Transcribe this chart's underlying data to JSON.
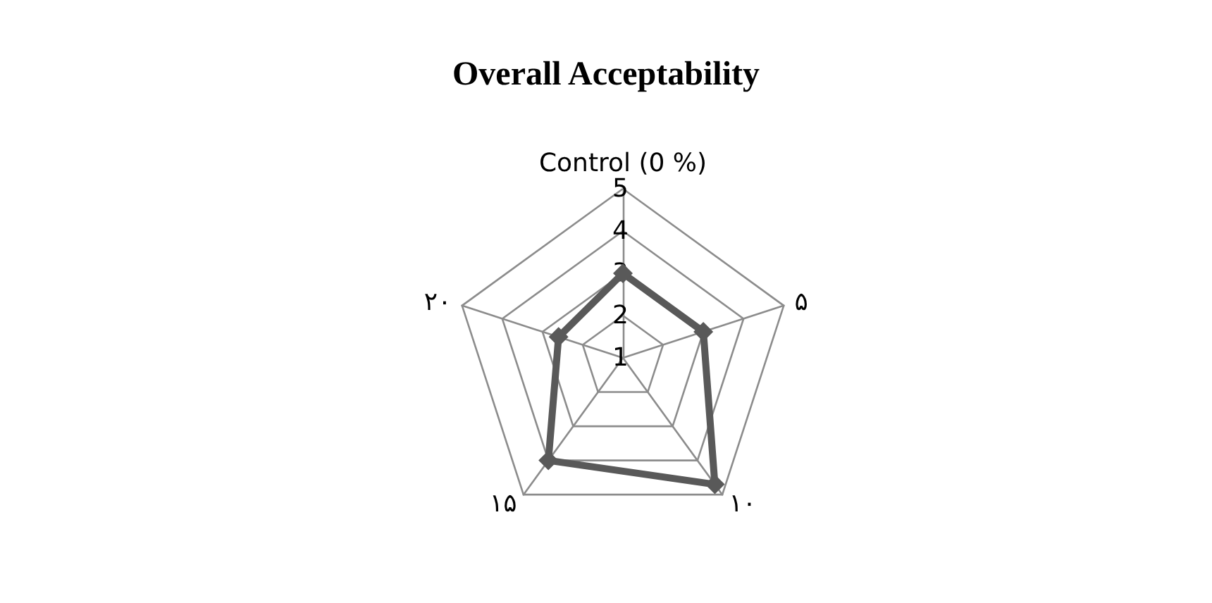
{
  "chart_data": {
    "type": "radar",
    "title": "Overall Acceptability",
    "categories": [
      "Control (0 %)",
      "۵",
      "۱۰",
      "۱۵",
      "۲۰"
    ],
    "series": [
      {
        "color": "#595959",
        "values": [
          3.0,
          3.0,
          4.7,
          4.0,
          2.6
        ]
      }
    ],
    "ylim": [
      1,
      5
    ],
    "yticks": [
      1,
      2,
      3,
      4,
      5
    ],
    "marker": "diamond",
    "line_style": "solid",
    "grid": true
  }
}
